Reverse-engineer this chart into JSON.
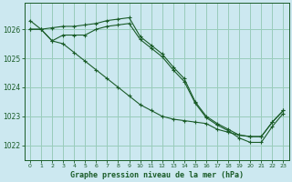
{
  "title": "Graphe pression niveau de la mer (hPa)",
  "bg_color": "#cce8f0",
  "grid_color": "#99ccbb",
  "line_color": "#1a5c28",
  "xlim": [
    -0.5,
    23.5
  ],
  "ylim": [
    1021.5,
    1026.9
  ],
  "yticks": [
    1022,
    1023,
    1024,
    1025,
    1026
  ],
  "xticks": [
    0,
    1,
    2,
    3,
    4,
    5,
    6,
    7,
    8,
    9,
    10,
    11,
    12,
    13,
    14,
    15,
    16,
    17,
    18,
    19,
    20,
    21,
    22,
    23
  ],
  "series": [
    [
      1026.3,
      1026.0,
      1026.05,
      1026.1,
      1026.1,
      1026.15,
      1026.2,
      1026.3,
      1026.35,
      1026.4,
      1025.75,
      1025.45,
      1025.15,
      1024.7,
      1024.3,
      1023.5,
      1023.0,
      1022.75,
      1022.55,
      1022.35,
      1022.3,
      1022.3,
      1022.8,
      1023.2
    ],
    [
      1026.0,
      1026.0,
      1025.6,
      1025.5,
      1025.2,
      1024.9,
      1024.6,
      1024.3,
      1024.0,
      1023.7,
      1023.4,
      1023.2,
      1023.0,
      1022.9,
      1022.85,
      1022.8,
      1022.75,
      1022.55,
      1022.45,
      1022.35,
      1022.3,
      1022.3,
      1022.8,
      1023.2
    ],
    [
      1026.0,
      1026.0,
      1025.6,
      1025.8,
      1025.8,
      1025.8,
      1026.0,
      1026.1,
      1026.15,
      1026.2,
      1025.65,
      1025.35,
      1025.05,
      1024.6,
      1024.2,
      1023.45,
      1022.95,
      1022.7,
      1022.5,
      1022.25,
      1022.1,
      1022.1,
      1022.65,
      1023.1
    ]
  ]
}
